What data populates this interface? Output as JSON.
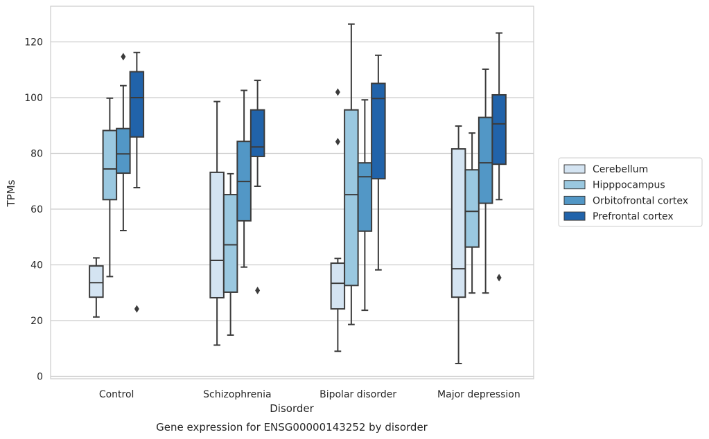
{
  "chart_data": {
    "type": "boxplot",
    "caption": "Gene expression for ENSG00000143252 by disorder",
    "xlabel": "Disorder",
    "ylabel": "TPMs",
    "ylim": [
      -1,
      133
    ],
    "yticks": [
      0,
      20,
      40,
      60,
      80,
      100,
      120
    ],
    "grid": "horizontal",
    "legend_position": "right",
    "categories": [
      "Control",
      "Schizophrenia",
      "Bipolar disorder",
      "Major depression"
    ],
    "series": [
      {
        "name": "Cerebellum",
        "color": "#d4e4f2",
        "boxes": [
          {
            "min": 21.3,
            "q1": 28.4,
            "median": 33.6,
            "q3": 39.6,
            "max": 42.5,
            "outliers": []
          },
          {
            "min": 11.2,
            "q1": 28.2,
            "median": 41.6,
            "q3": 73.2,
            "max": 98.6,
            "outliers": []
          },
          {
            "min": 9.0,
            "q1": 24.2,
            "median": 33.4,
            "q3": 40.6,
            "max": 42.3,
            "outliers": [
              84.2,
              102.0
            ]
          },
          {
            "min": 4.6,
            "q1": 28.4,
            "median": 38.6,
            "q3": 81.6,
            "max": 89.8,
            "outliers": []
          }
        ]
      },
      {
        "name": "Hipppocampus",
        "color": "#9ac8e0",
        "boxes": [
          {
            "min": 35.8,
            "q1": 63.4,
            "median": 74.4,
            "q3": 88.2,
            "max": 99.8,
            "outliers": []
          },
          {
            "min": 14.8,
            "q1": 30.2,
            "median": 47.2,
            "q3": 65.2,
            "max": 72.7,
            "outliers": []
          },
          {
            "min": 18.6,
            "q1": 32.6,
            "median": 65.2,
            "q3": 95.6,
            "max": 126.4,
            "outliers": []
          },
          {
            "min": 29.9,
            "q1": 46.4,
            "median": 59.2,
            "q3": 74.1,
            "max": 87.3,
            "outliers": []
          }
        ]
      },
      {
        "name": "Orbitofrontal cortex",
        "color": "#5297c6",
        "boxes": [
          {
            "min": 52.3,
            "q1": 72.9,
            "median": 79.8,
            "q3": 88.9,
            "max": 104.3,
            "outliers": [
              114.7
            ]
          },
          {
            "min": 39.2,
            "q1": 55.8,
            "median": 69.9,
            "q3": 84.3,
            "max": 102.6,
            "outliers": []
          },
          {
            "min": 23.7,
            "q1": 52.1,
            "median": 71.6,
            "q3": 76.6,
            "max": 99.2,
            "outliers": []
          },
          {
            "min": 29.9,
            "q1": 62.1,
            "median": 76.6,
            "q3": 92.9,
            "max": 110.2,
            "outliers": []
          }
        ]
      },
      {
        "name": "Prefrontal cortex",
        "color": "#2163aa",
        "boxes": [
          {
            "min": 67.7,
            "q1": 85.9,
            "median": 100.0,
            "q3": 109.3,
            "max": 116.2,
            "outliers": [
              24.2
            ]
          },
          {
            "min": 68.2,
            "q1": 78.9,
            "median": 82.3,
            "q3": 95.6,
            "max": 106.2,
            "outliers": [
              30.8
            ]
          },
          {
            "min": 38.2,
            "q1": 70.9,
            "median": 99.7,
            "q3": 105.1,
            "max": 115.2,
            "outliers": []
          },
          {
            "min": 63.4,
            "q1": 76.1,
            "median": 90.6,
            "q3": 101.0,
            "max": 123.2,
            "outliers": [
              35.4
            ]
          }
        ]
      }
    ]
  }
}
